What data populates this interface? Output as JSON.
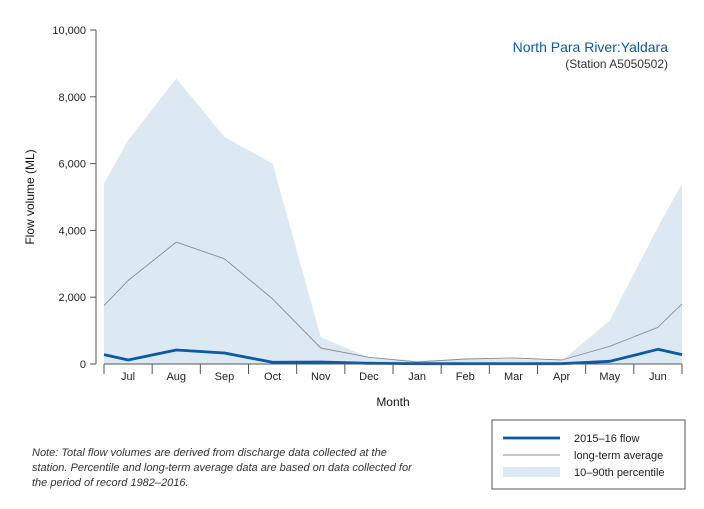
{
  "chart_data": {
    "type": "area",
    "title": "North Para River:Yaldara",
    "subtitle": "(Station A5050502)",
    "xlabel": "Month",
    "ylabel": "Flow volume (ML)",
    "ylim": [
      0,
      10000
    ],
    "yticks": [
      0,
      2000,
      4000,
      6000,
      8000,
      10000
    ],
    "ytick_labels": [
      "0",
      "2,000",
      "4,000",
      "6,000",
      "8,000",
      "10,000"
    ],
    "categories": [
      "Jul",
      "Aug",
      "Sep",
      "Oct",
      "Nov",
      "Dec",
      "Jan",
      "Feb",
      "Mar",
      "Apr",
      "May",
      "Jun"
    ],
    "x_edge_start": 0.5,
    "x_edge_end": 12.5,
    "series": [
      {
        "name": "2015–16 flow",
        "kind": "line",
        "color": "#0a5aa8",
        "x": [
          0.5,
          1,
          2,
          3,
          4,
          5,
          6,
          7,
          8,
          9,
          10,
          11,
          12,
          12.5
        ],
        "values": [
          280,
          120,
          420,
          330,
          50,
          60,
          20,
          10,
          10,
          10,
          10,
          80,
          440,
          280
        ]
      },
      {
        "name": "long-term average",
        "kind": "line",
        "color": "#8c8c8c",
        "x": [
          0.5,
          1,
          2,
          3,
          4,
          5,
          6,
          7,
          8,
          9,
          10,
          11,
          12,
          12.5
        ],
        "values": [
          1750,
          2500,
          3650,
          3150,
          1950,
          480,
          200,
          60,
          150,
          180,
          120,
          530,
          1100,
          1800
        ]
      },
      {
        "name": "10–90th percentile",
        "kind": "band",
        "color": "#dde9f2",
        "x": [
          0.5,
          1,
          2,
          3,
          4,
          5,
          6,
          7,
          8,
          9,
          10,
          11,
          12,
          12.5
        ],
        "upper": [
          5400,
          6700,
          8550,
          6800,
          6000,
          800,
          200,
          100,
          150,
          150,
          100,
          1300,
          4100,
          5400
        ],
        "lower": [
          0,
          0,
          0,
          0,
          0,
          0,
          0,
          0,
          0,
          0,
          0,
          0,
          0,
          0
        ]
      }
    ],
    "legend_position": "bottom-right",
    "grid": false
  },
  "note": "Note: Total flow volumes are derived from discharge data collected at the station. Percentile and long-term average data are based on data collected for the period of record 1982–2016.",
  "colors": {
    "title": "#0a5aa8",
    "subtitle": "#333333",
    "axis": "#555555"
  }
}
